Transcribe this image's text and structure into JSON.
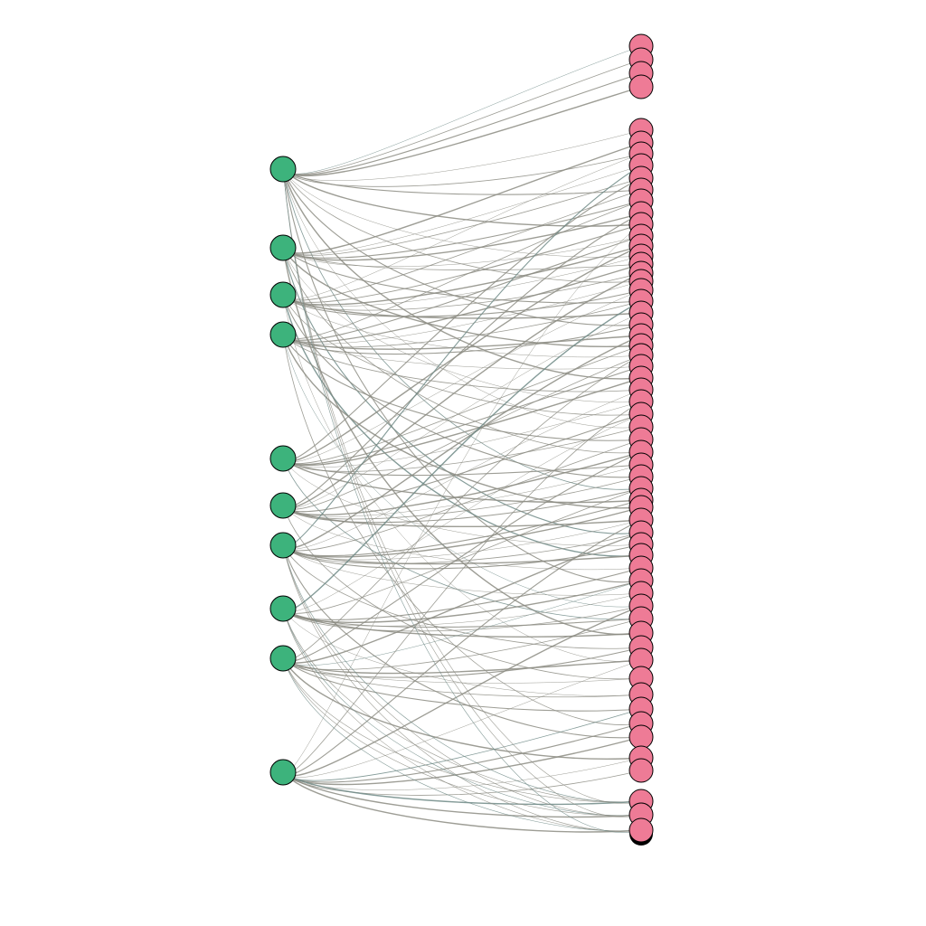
{
  "diagram": {
    "type": "bipartite-network",
    "colors": {
      "background": "#ffffff",
      "left_node_fill": "#3db37c",
      "right_node_fill": "#ee7b96",
      "node_stroke": "#000000",
      "edge_stroke": "#8c8c82",
      "edge_stroke_alt": "#6f8a86"
    },
    "left_node_count": 10,
    "right_node_count": 58,
    "edges": [
      [
        0,
        0
      ],
      [
        0,
        1
      ],
      [
        0,
        2
      ],
      [
        0,
        3
      ],
      [
        0,
        4
      ],
      [
        0,
        6
      ],
      [
        0,
        9
      ],
      [
        0,
        12
      ],
      [
        0,
        15
      ],
      [
        0,
        18
      ],
      [
        0,
        22
      ],
      [
        0,
        27
      ],
      [
        0,
        31
      ],
      [
        0,
        36
      ],
      [
        0,
        44
      ],
      [
        1,
        5
      ],
      [
        1,
        7
      ],
      [
        1,
        8
      ],
      [
        1,
        10
      ],
      [
        1,
        11
      ],
      [
        1,
        13
      ],
      [
        1,
        16
      ],
      [
        1,
        20
      ],
      [
        1,
        24
      ],
      [
        1,
        29
      ],
      [
        1,
        33
      ],
      [
        1,
        40
      ],
      [
        1,
        48
      ],
      [
        2,
        6
      ],
      [
        2,
        9
      ],
      [
        2,
        12
      ],
      [
        2,
        14
      ],
      [
        2,
        15
      ],
      [
        2,
        17
      ],
      [
        2,
        19
      ],
      [
        2,
        21
      ],
      [
        2,
        25
      ],
      [
        2,
        30
      ],
      [
        2,
        35
      ],
      [
        2,
        42
      ],
      [
        2,
        50
      ],
      [
        3,
        10
      ],
      [
        3,
        13
      ],
      [
        3,
        16
      ],
      [
        3,
        18
      ],
      [
        3,
        20
      ],
      [
        3,
        22
      ],
      [
        3,
        23
      ],
      [
        3,
        26
      ],
      [
        3,
        28
      ],
      [
        3,
        32
      ],
      [
        3,
        38
      ],
      [
        3,
        46
      ],
      [
        3,
        54
      ],
      [
        4,
        8
      ],
      [
        4,
        14
      ],
      [
        4,
        19
      ],
      [
        4,
        24
      ],
      [
        4,
        26
      ],
      [
        4,
        27
      ],
      [
        4,
        29
      ],
      [
        4,
        31
      ],
      [
        4,
        34
      ],
      [
        4,
        37
      ],
      [
        4,
        41
      ],
      [
        4,
        47
      ],
      [
        5,
        11
      ],
      [
        5,
        17
      ],
      [
        5,
        21
      ],
      [
        5,
        25
      ],
      [
        5,
        30
      ],
      [
        5,
        33
      ],
      [
        5,
        34
      ],
      [
        5,
        35
      ],
      [
        5,
        36
      ],
      [
        5,
        39
      ],
      [
        5,
        43
      ],
      [
        5,
        51
      ],
      [
        6,
        7
      ],
      [
        6,
        23
      ],
      [
        6,
        28
      ],
      [
        6,
        32
      ],
      [
        6,
        37
      ],
      [
        6,
        38
      ],
      [
        6,
        39
      ],
      [
        6,
        40
      ],
      [
        6,
        41
      ],
      [
        6,
        42
      ],
      [
        6,
        45
      ],
      [
        6,
        49
      ],
      [
        6,
        55
      ],
      [
        7,
        20
      ],
      [
        7,
        30
      ],
      [
        7,
        36
      ],
      [
        7,
        43
      ],
      [
        7,
        44
      ],
      [
        7,
        45
      ],
      [
        7,
        46
      ],
      [
        7,
        47
      ],
      [
        7,
        48
      ],
      [
        7,
        52
      ],
      [
        8,
        25
      ],
      [
        8,
        33
      ],
      [
        8,
        40
      ],
      [
        8,
        44
      ],
      [
        8,
        47
      ],
      [
        8,
        49
      ],
      [
        8,
        50
      ],
      [
        8,
        51
      ],
      [
        8,
        52
      ],
      [
        8,
        53
      ],
      [
        8,
        56
      ],
      [
        9,
        12
      ],
      [
        9,
        29
      ],
      [
        9,
        39
      ],
      [
        9,
        46
      ],
      [
        9,
        50
      ],
      [
        9,
        53
      ],
      [
        9,
        54
      ],
      [
        9,
        55
      ],
      [
        9,
        56
      ],
      [
        9,
        57
      ]
    ]
  }
}
